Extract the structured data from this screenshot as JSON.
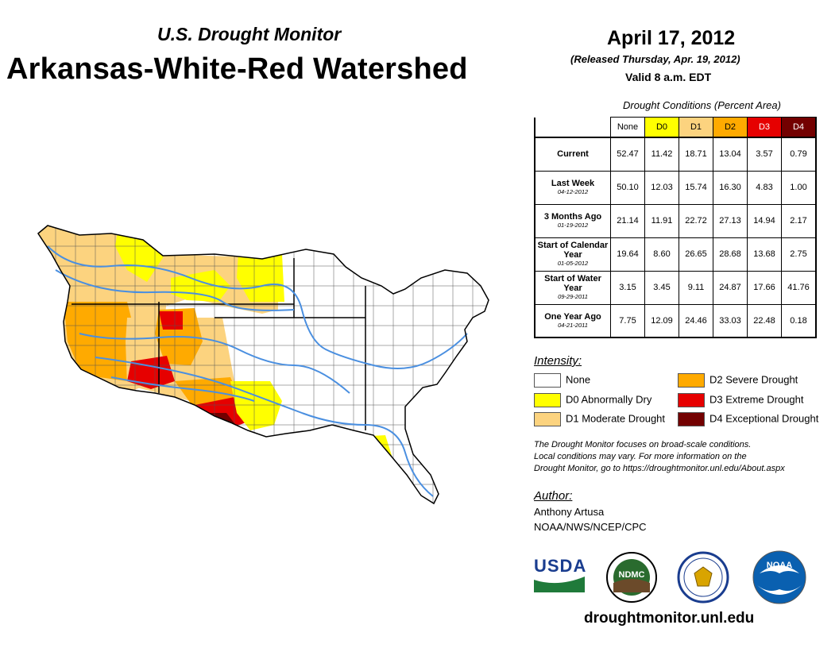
{
  "header": {
    "subtitle": "U.S. Drought Monitor",
    "title": "Arkansas-White-Red Watershed",
    "date": "April 17, 2012",
    "released": "(Released Thursday, Apr. 19, 2012)",
    "valid": "Valid 8 a.m. EDT"
  },
  "table": {
    "caption": "Drought Conditions (Percent Area)",
    "columns": [
      {
        "label": "None",
        "color": "#ffffff"
      },
      {
        "label": "D0",
        "color": "#ffff00"
      },
      {
        "label": "D1",
        "color": "#fcd37f"
      },
      {
        "label": "D2",
        "color": "#ffaa00"
      },
      {
        "label": "D3",
        "color": "#e60000"
      },
      {
        "label": "D4",
        "color": "#730000"
      }
    ],
    "rows": [
      {
        "label": "Current",
        "date": "",
        "values": [
          "52.47",
          "11.42",
          "18.71",
          "13.04",
          "3.57",
          "0.79"
        ]
      },
      {
        "label": "Last Week",
        "date": "04-12-2012",
        "values": [
          "50.10",
          "12.03",
          "15.74",
          "16.30",
          "4.83",
          "1.00"
        ]
      },
      {
        "label": "3 Months Ago",
        "date": "01-19-2012",
        "values": [
          "21.14",
          "11.91",
          "22.72",
          "27.13",
          "14.94",
          "2.17"
        ]
      },
      {
        "label": "Start of Calendar Year",
        "date": "01-05-2012",
        "values": [
          "19.64",
          "8.60",
          "26.65",
          "28.68",
          "13.68",
          "2.75"
        ]
      },
      {
        "label": "Start of Water Year",
        "date": "09-29-2011",
        "values": [
          "3.15",
          "3.45",
          "9.11",
          "24.87",
          "17.66",
          "41.76"
        ]
      },
      {
        "label": "One Year Ago",
        "date": "04-21-2011",
        "values": [
          "7.75",
          "12.09",
          "24.46",
          "33.03",
          "22.48",
          "0.18"
        ]
      }
    ]
  },
  "legend": {
    "title": "Intensity:",
    "items": [
      {
        "label": "None",
        "color": "#ffffff"
      },
      {
        "label": "D0 Abnormally Dry",
        "color": "#ffff00"
      },
      {
        "label": "D1 Moderate Drought",
        "color": "#fcd37f"
      },
      {
        "label": "D2 Severe Drought",
        "color": "#ffaa00"
      },
      {
        "label": "D3 Extreme Drought",
        "color": "#e60000"
      },
      {
        "label": "D4 Exceptional Drought",
        "color": "#730000"
      }
    ]
  },
  "note": {
    "line1": "The Drought Monitor focuses on broad-scale conditions.",
    "line2": "Local conditions may vary. For more information on the",
    "line3": "Drought Monitor, go to https://droughtmonitor.unl.edu/About.aspx"
  },
  "author": {
    "title": "Author:",
    "name": "Anthony Artusa",
    "org": "NOAA/NWS/NCEP/CPC"
  },
  "logos": {
    "usda": "USDA",
    "ndmc": "NDMC",
    "noaa": "NOAA"
  },
  "colors": {
    "river": "#4a8fe0",
    "none": "#ffffff",
    "d0": "#ffff00",
    "d1": "#fcd37f",
    "d2": "#ffaa00",
    "d3": "#e60000",
    "d4": "#730000"
  },
  "footer": {
    "url": "droughtmonitor.unl.edu"
  }
}
